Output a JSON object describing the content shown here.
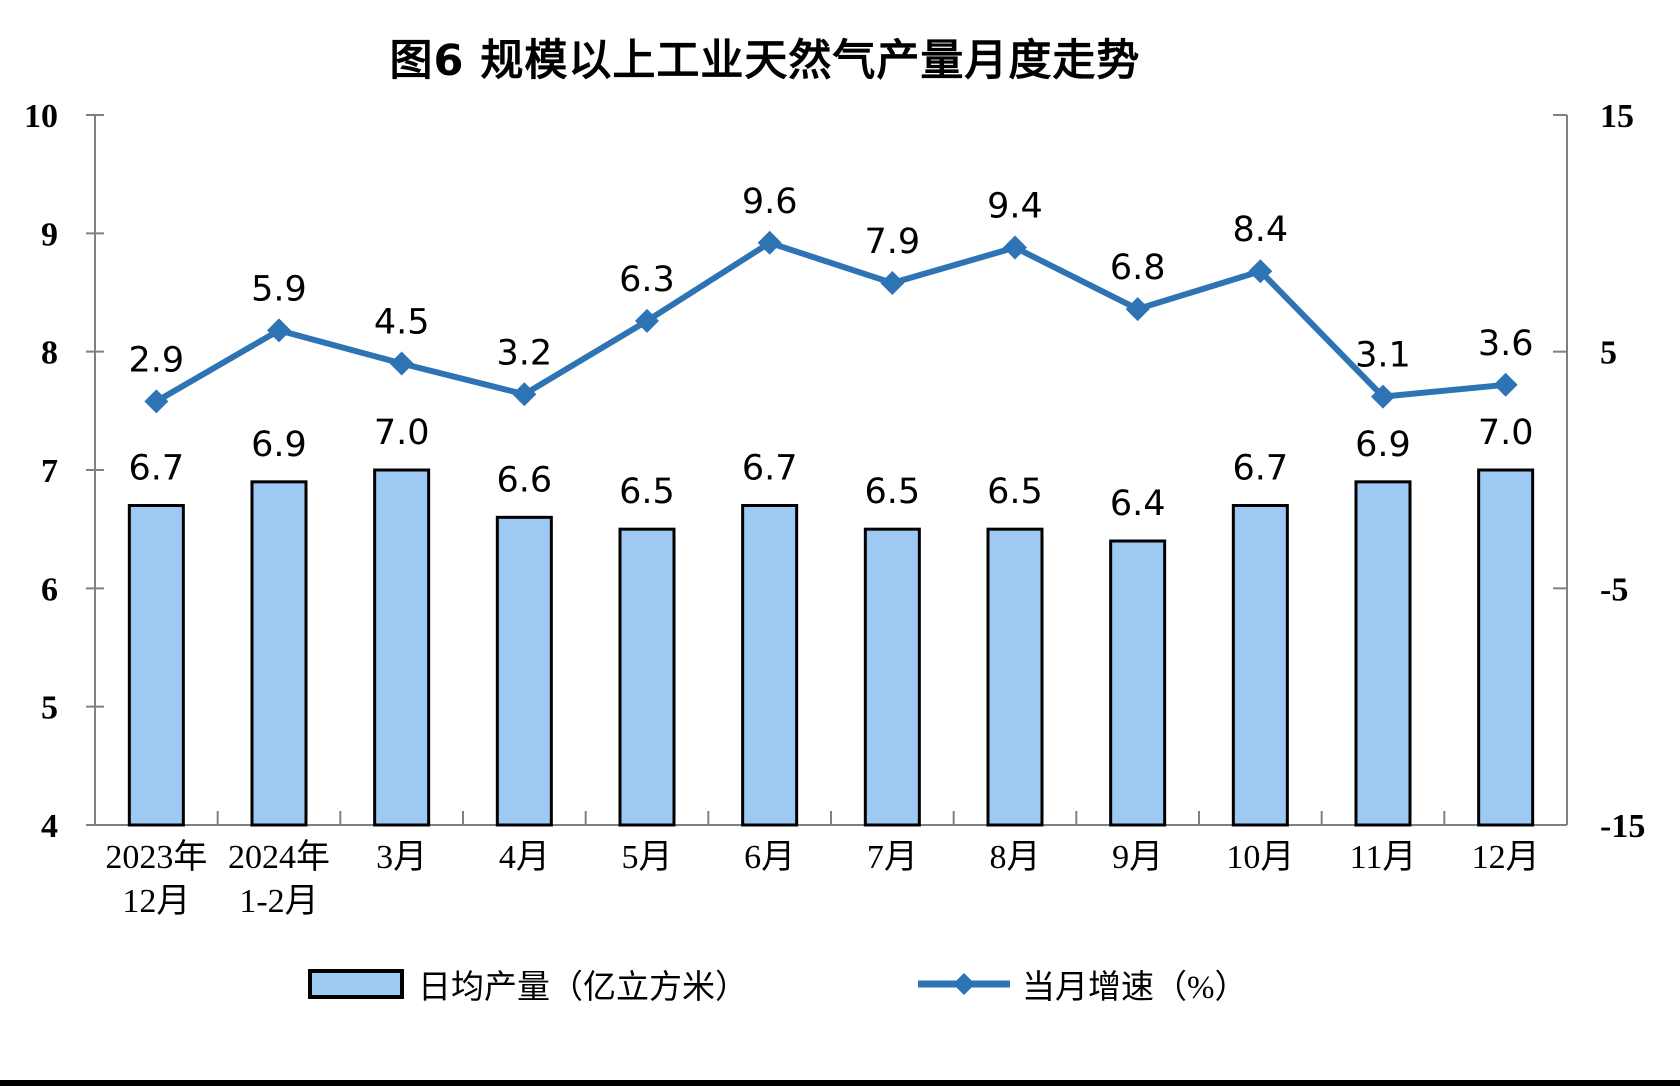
{
  "page": {
    "background": "#FFFFFF",
    "bottom_border_color": "#000000",
    "axis_color": "#808080",
    "text_color": "#000000"
  },
  "chart_data": {
    "type": "combo-bar-line",
    "title": "图6 规模以上工业天然气产量月度走势",
    "categories": [
      "2023年\n12月",
      "2024年\n1-2月",
      "3月",
      "4月",
      "5月",
      "6月",
      "7月",
      "8月",
      "9月",
      "10月",
      "11月",
      "12月"
    ],
    "series": [
      {
        "name": "日均产量（亿立方米）",
        "type": "bar",
        "axis": "left",
        "values": [
          6.7,
          6.9,
          7.0,
          6.6,
          6.5,
          6.7,
          6.5,
          6.5,
          6.4,
          6.7,
          6.9,
          7.0
        ],
        "fill": "#9DC9F2",
        "stroke": "#000000"
      },
      {
        "name": "当月增速（%）",
        "type": "line",
        "axis": "right",
        "values": [
          2.9,
          5.9,
          4.5,
          3.2,
          6.3,
          9.6,
          7.9,
          9.4,
          6.8,
          8.4,
          3.1,
          3.6
        ],
        "color": "#2E74B5",
        "marker": "diamond"
      }
    ],
    "left_axis": {
      "min": 4,
      "max": 10,
      "ticks": [
        10,
        9,
        8,
        7,
        6,
        5,
        4
      ]
    },
    "right_axis": {
      "min": -15,
      "max": 15,
      "ticks": [
        15,
        5,
        -5,
        -15
      ]
    },
    "grid": false,
    "legend_position": "bottom",
    "data_labels": true
  }
}
